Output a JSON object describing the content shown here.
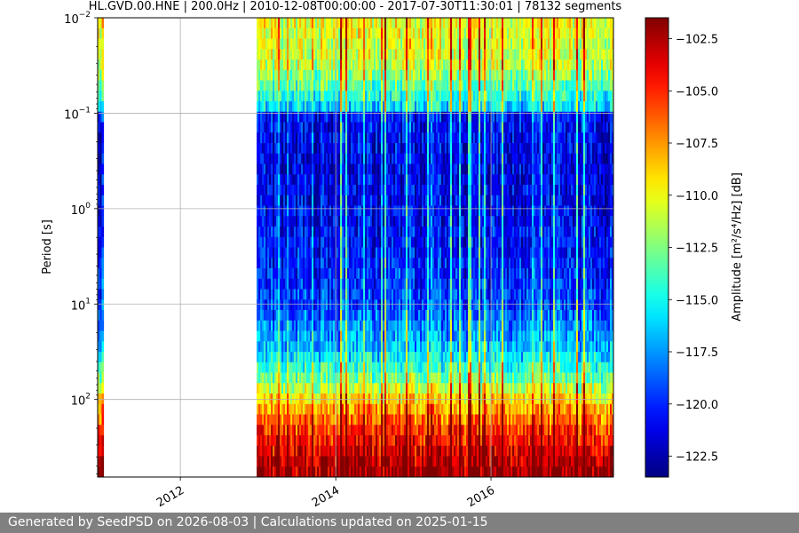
{
  "chart_data": {
    "type": "heatmap",
    "title": "HL.GVD.00.HNE | 200.0Hz | 2010-12-08T00:00:00 - 2017-07-30T11:30:01 | 78132 segments",
    "ylabel": "Period [s]",
    "y_scale": "log",
    "y_inverted": true,
    "x_range": [
      "2010-12-08",
      "2017-07-30"
    ],
    "y_range": [
      0.01,
      650
    ],
    "x_ticks": [
      {
        "value": "2012-01-01",
        "label": "2012"
      },
      {
        "value": "2014-01-01",
        "label": "2014"
      },
      {
        "value": "2016-01-01",
        "label": "2016"
      }
    ],
    "y_ticks": [
      {
        "value": 0.01,
        "base": "10",
        "exp": "−2"
      },
      {
        "value": 0.1,
        "base": "10",
        "exp": "−1"
      },
      {
        "value": 1,
        "base": "10",
        "exp": "0"
      },
      {
        "value": 10,
        "base": "10",
        "exp": "1"
      },
      {
        "value": 100,
        "base": "10",
        "exp": "2"
      }
    ],
    "grid": true,
    "colormap": "jet",
    "colorbar": {
      "label": "Amplitude [m²/s⁴/Hz] [dB]",
      "range": [
        -123.5,
        -101.5
      ],
      "ticks": [
        {
          "value": -102.5,
          "label": "−102.5"
        },
        {
          "value": -105.0,
          "label": "−105.0"
        },
        {
          "value": -107.5,
          "label": "−107.5"
        },
        {
          "value": -110.0,
          "label": "−110.0"
        },
        {
          "value": -112.5,
          "label": "−112.5"
        },
        {
          "value": -115.0,
          "label": "−115.0"
        },
        {
          "value": -117.5,
          "label": "−117.5"
        },
        {
          "value": -120.0,
          "label": "−120.0"
        },
        {
          "value": -122.5,
          "label": "−122.5"
        }
      ]
    },
    "data_blocks": [
      {
        "start": "2010-12-08",
        "end": "2011-01-05"
      },
      {
        "start": "2012-12-25",
        "end": "2017-07-30"
      }
    ],
    "gap": {
      "start": "2011-01-05",
      "end": "2012-12-25"
    },
    "period_profile": [
      {
        "period": 0.01,
        "db": -110.0
      },
      {
        "period": 0.03,
        "db": -111.0
      },
      {
        "period": 0.09,
        "db": -116.0
      },
      {
        "period": 0.1,
        "db": -120.5
      },
      {
        "period": 0.3,
        "db": -121.5
      },
      {
        "period": 1,
        "db": -121.0
      },
      {
        "period": 3,
        "db": -120.5
      },
      {
        "period": 10,
        "db": -119.5
      },
      {
        "period": 30,
        "db": -116.5
      },
      {
        "period": 60,
        "db": -113.0
      },
      {
        "period": 100,
        "db": -109.0
      },
      {
        "period": 200,
        "db": -105.5
      },
      {
        "period": 400,
        "db": -103.0
      },
      {
        "period": 650,
        "db": -102.0
      }
    ]
  },
  "footer": {
    "text": "Generated by SeedPSD on 2026-08-03 | Calculations updated on 2025-01-15"
  }
}
